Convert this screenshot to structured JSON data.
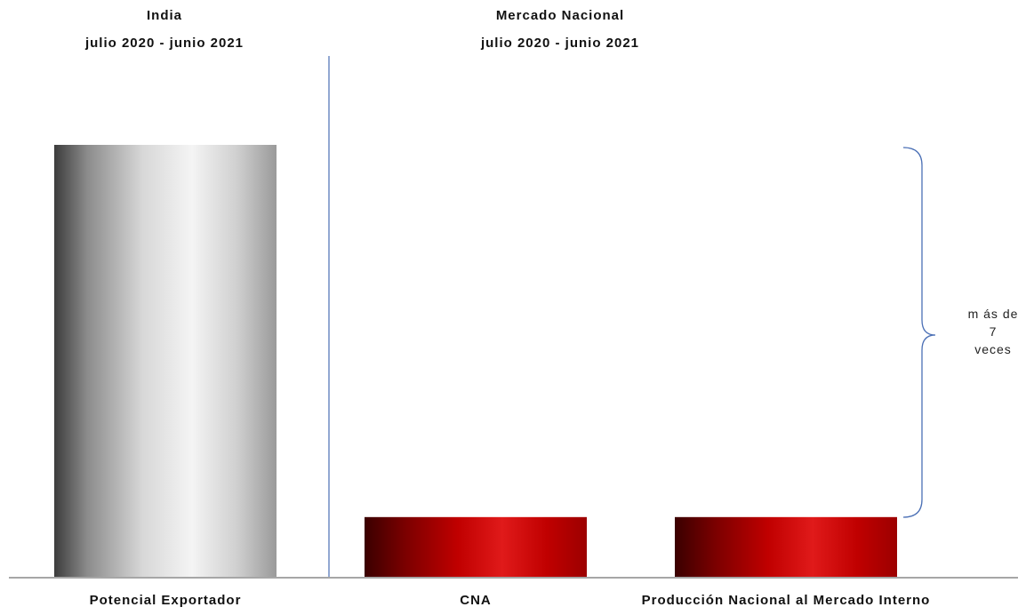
{
  "colors": {
    "grey_bar": "#d8d8d8",
    "red_bar": "#c00000",
    "divider": "#4a6fb5",
    "axis": "#a6a6a6"
  },
  "panels": [
    {
      "title_line1": "India",
      "title_line2": "julio 2020 - junio 2021"
    },
    {
      "title_line1": "Mercado Nacional",
      "title_line2": "julio 2020 - junio 2021"
    }
  ],
  "annotation": {
    "line1": "m ás de",
    "line2": "7",
    "line3": "veces"
  },
  "chart_data": {
    "type": "bar",
    "title": "",
    "xlabel": "",
    "ylabel": "",
    "categories": [
      "Potencial Exportador",
      "CNA",
      "Producción Nacional al Mercado Interno"
    ],
    "values": [
      100,
      14,
      14
    ],
    "ylim": [
      0,
      110
    ],
    "grid": false,
    "legend": "none"
  }
}
